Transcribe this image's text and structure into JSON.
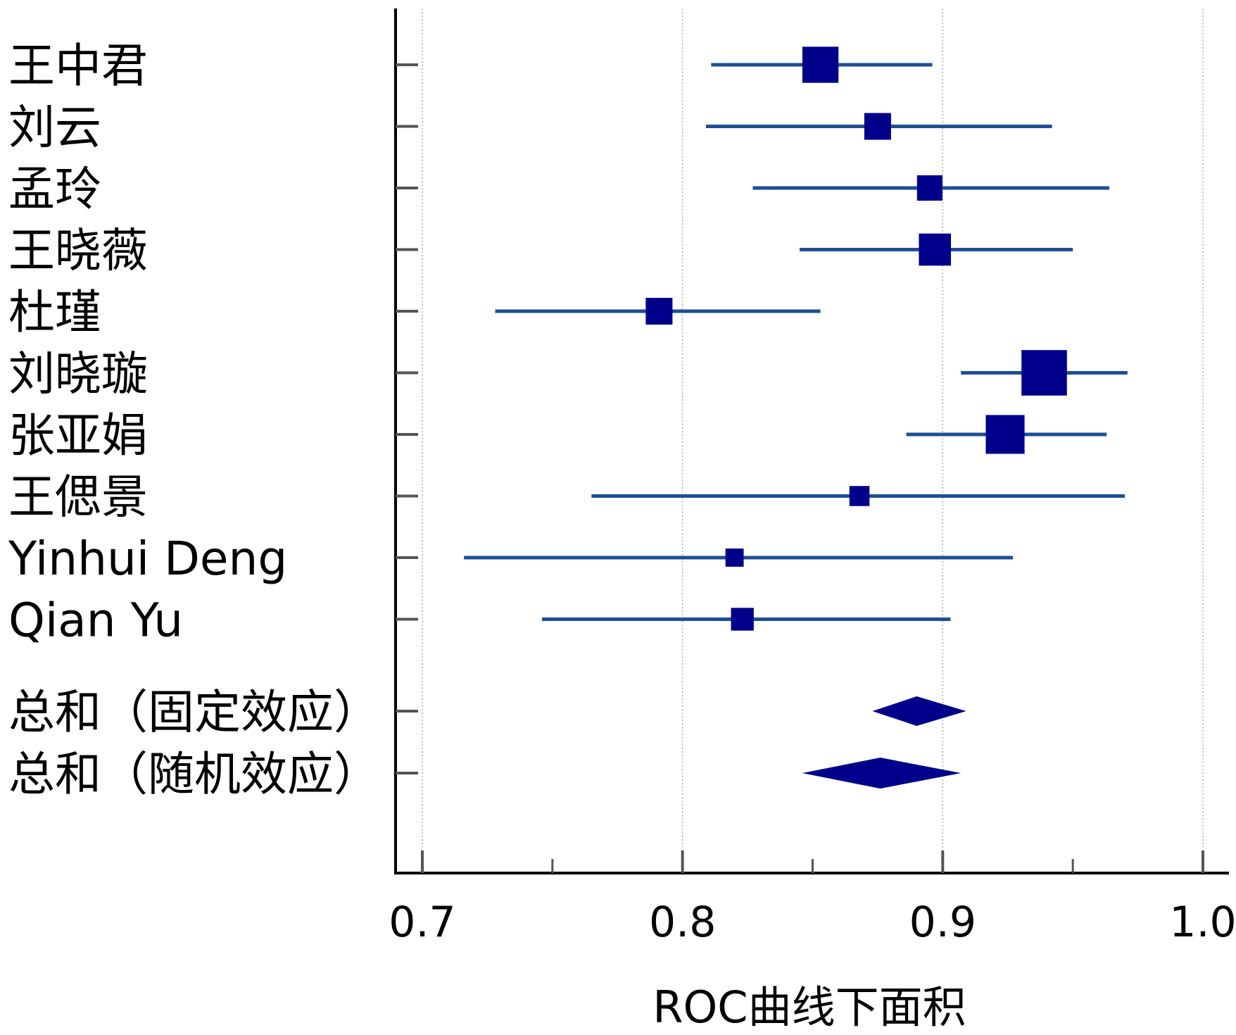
{
  "chart_data": {
    "type": "forest",
    "xlabel": "ROC曲线下面积",
    "xlim": [
      0.69,
      1.01
    ],
    "xticks": [
      0.7,
      0.8,
      0.9,
      1.0
    ],
    "xtick_labels": [
      "0.7",
      "0.8",
      "0.9",
      "1.0"
    ],
    "minor_xticks": [
      0.75,
      0.85,
      0.95
    ],
    "gridlines": [
      0.7,
      0.8,
      0.9,
      1.0
    ],
    "studies": [
      {
        "label": "王中君",
        "estimate": 0.853,
        "lower": 0.811,
        "upper": 0.896,
        "weight": 1.35
      },
      {
        "label": "刘云",
        "estimate": 0.875,
        "lower": 0.809,
        "upper": 0.942,
        "weight": 1.0
      },
      {
        "label": "孟玲",
        "estimate": 0.895,
        "lower": 0.827,
        "upper": 0.964,
        "weight": 0.95
      },
      {
        "label": "王晓薇",
        "estimate": 0.897,
        "lower": 0.845,
        "upper": 0.95,
        "weight": 1.2
      },
      {
        "label": "杜瑾",
        "estimate": 0.791,
        "lower": 0.728,
        "upper": 0.853,
        "weight": 1.0
      },
      {
        "label": "刘晓璇",
        "estimate": 0.939,
        "lower": 0.907,
        "upper": 0.971,
        "weight": 1.7
      },
      {
        "label": "张亚娟",
        "estimate": 0.924,
        "lower": 0.886,
        "upper": 0.963,
        "weight": 1.45
      },
      {
        "label": "王偲景",
        "estimate": 0.868,
        "lower": 0.765,
        "upper": 0.97,
        "weight": 0.75
      },
      {
        "label": "Yinhui Deng",
        "estimate": 0.82,
        "lower": 0.716,
        "upper": 0.927,
        "weight": 0.68
      },
      {
        "label": "Qian Yu",
        "estimate": 0.823,
        "lower": 0.746,
        "upper": 0.903,
        "weight": 0.85
      }
    ],
    "pooled": [
      {
        "label": "总和（固定效应）",
        "estimate": 0.89,
        "lower": 0.873,
        "upper": 0.909
      },
      {
        "label": "总和（随机效应）",
        "estimate": 0.876,
        "lower": 0.846,
        "upper": 0.907
      }
    ],
    "colors": {
      "marker": "#00008B",
      "ci_line": "#1F4E96",
      "axis": "#000000",
      "grid": "#B0B0B0"
    }
  }
}
